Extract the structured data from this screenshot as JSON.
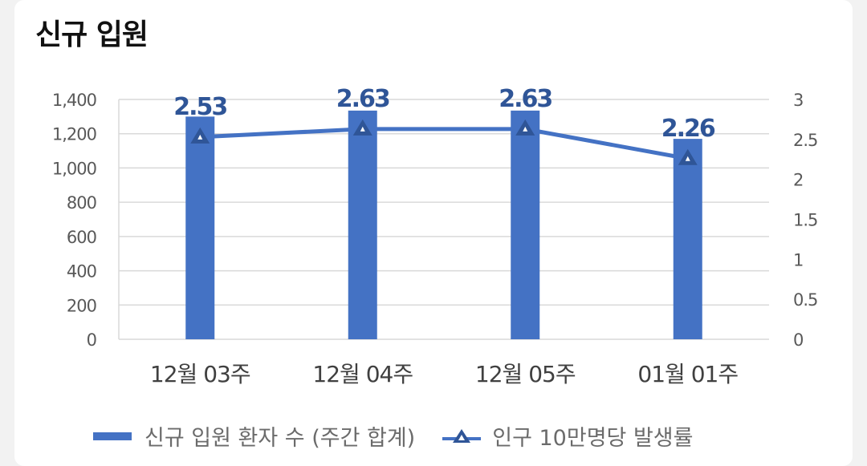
{
  "title": "신규 입원",
  "colors": {
    "bar": "#4472c4",
    "line": "#4472c4",
    "marker": "#2f5597",
    "label": "#2f5597",
    "grid": "#d9d9d9",
    "axis_text": "#595959",
    "category_text": "#404040"
  },
  "chart_data": {
    "type": "bar",
    "categories": [
      "12월 03주",
      "12월 04주",
      "12월 05주",
      "01월 01주"
    ],
    "series": [
      {
        "name": "신규 입원 환자 수 (주간 합계)",
        "type": "bar",
        "axis": "left",
        "values": [
          1300,
          1335,
          1335,
          1170
        ]
      },
      {
        "name": "인구 10만명당 발생률",
        "type": "line",
        "axis": "right",
        "marker": "triangle",
        "values": [
          2.53,
          2.63,
          2.63,
          2.26
        ],
        "data_labels": [
          "2.53",
          "2.63",
          "2.63",
          "2.26"
        ]
      }
    ],
    "y_left": {
      "lim": [
        0,
        1400
      ],
      "ticks": [
        0,
        200,
        400,
        600,
        800,
        1000,
        1200,
        1400
      ],
      "tick_labels": [
        "0",
        "200",
        "400",
        "600",
        "800",
        "1,000",
        "1,200",
        "1,400"
      ]
    },
    "y_right": {
      "lim": [
        0,
        3
      ],
      "ticks": [
        0,
        0.5,
        1,
        1.5,
        2,
        2.5,
        3
      ],
      "tick_labels": [
        "0",
        "0.5",
        "1",
        "1.5",
        "2",
        "2.5",
        "3"
      ]
    },
    "grid": true,
    "legend_position": "bottom"
  }
}
